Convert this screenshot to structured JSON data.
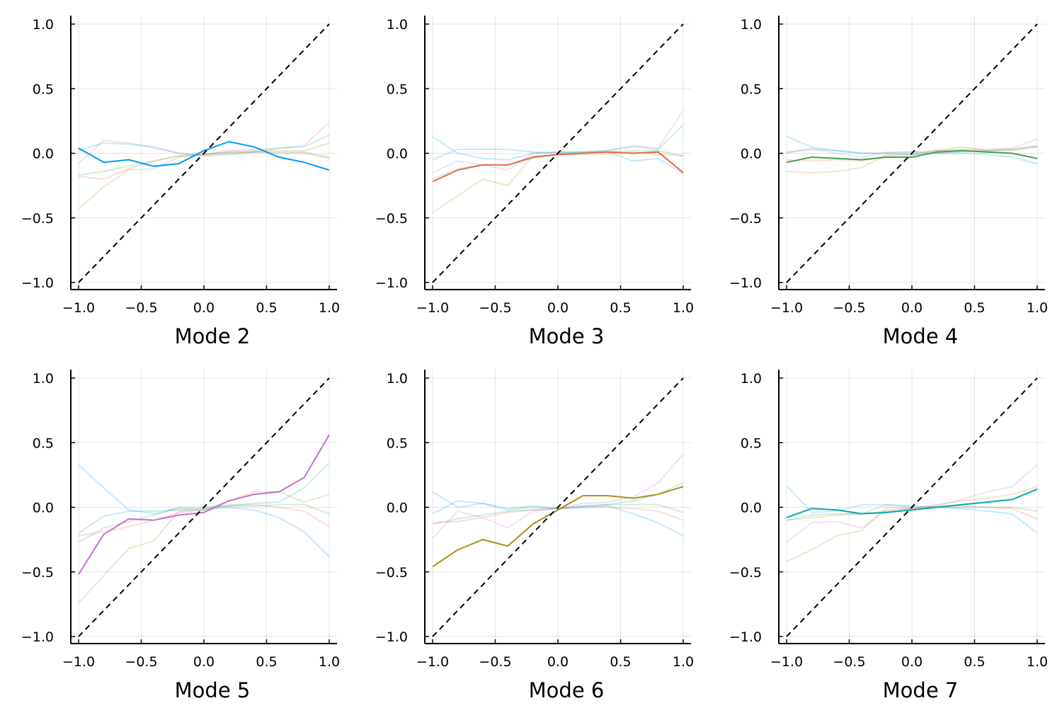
{
  "chart_data": [
    {
      "type": "line",
      "xlabel": "Mode 2",
      "xlim": [
        -1.05,
        1.05
      ],
      "ylim": [
        -1.05,
        1.05
      ],
      "xticks": [
        "−1.0",
        "−0.5",
        "0.0",
        "0.5",
        "1.0"
      ],
      "yticks": [
        "−1.0",
        "−0.5",
        "0.0",
        "0.5",
        "1.0"
      ],
      "tick_values": [
        -1.0,
        -0.5,
        0.0,
        0.5,
        1.0
      ],
      "grid": true,
      "legend": "none",
      "reference_line": {
        "style": "dashed",
        "color": "#000000",
        "x": [
          -1.0,
          1.0
        ],
        "y": [
          -1.0,
          1.0
        ]
      },
      "x": [
        -1.0,
        -0.8,
        -0.6,
        -0.4,
        -0.2,
        0.0,
        0.2,
        0.4,
        0.6,
        0.8,
        1.0
      ],
      "highlight": {
        "color": "#009AFA",
        "values": [
          0.04,
          -0.07,
          -0.05,
          -0.1,
          -0.08,
          0.02,
          0.09,
          0.05,
          -0.03,
          -0.07,
          -0.13
        ]
      },
      "background_series": [
        {
          "color": "#E26F46",
          "values": [
            -0.18,
            -0.2,
            -0.12,
            -0.06,
            -0.02,
            -0.01,
            0.01,
            0.01,
            0.0,
            0.0,
            -0.04
          ]
        },
        {
          "color": "#3EA44E",
          "values": [
            -0.17,
            -0.14,
            -0.1,
            -0.06,
            -0.02,
            -0.01,
            0.0,
            0.01,
            0.01,
            0.01,
            -0.03
          ]
        },
        {
          "color": "#C271D2",
          "values": [
            -0.08,
            0.1,
            0.08,
            0.04,
            0.0,
            -0.01,
            0.02,
            0.03,
            0.04,
            0.06,
            0.24
          ]
        },
        {
          "color": "#AC8D18",
          "values": [
            -0.43,
            -0.26,
            -0.13,
            -0.12,
            -0.03,
            -0.01,
            0.01,
            0.02,
            0.02,
            0.02,
            0.08
          ]
        },
        {
          "color": "#00A9AD",
          "values": [
            0.02,
            0.08,
            0.07,
            0.05,
            0.0,
            -0.02,
            -0.01,
            0.01,
            0.04,
            0.05,
            0.14
          ]
        }
      ]
    },
    {
      "type": "line",
      "xlabel": "Mode 3",
      "xlim": [
        -1.05,
        1.05
      ],
      "ylim": [
        -1.05,
        1.05
      ],
      "xticks": [
        "−1.0",
        "−0.5",
        "0.0",
        "0.5",
        "1.0"
      ],
      "yticks": [
        "−1.0",
        "−0.5",
        "0.0",
        "0.5",
        "1.0"
      ],
      "tick_values": [
        -1.0,
        -0.5,
        0.0,
        0.5,
        1.0
      ],
      "grid": true,
      "legend": "none",
      "reference_line": {
        "style": "dashed",
        "color": "#000000",
        "x": [
          -1.0,
          1.0
        ],
        "y": [
          -1.0,
          1.0
        ]
      },
      "x": [
        -1.0,
        -0.8,
        -0.6,
        -0.4,
        -0.2,
        0.0,
        0.2,
        0.4,
        0.6,
        0.8,
        1.0
      ],
      "highlight": {
        "color": "#E26F46",
        "values": [
          -0.22,
          -0.13,
          -0.09,
          -0.09,
          -0.03,
          -0.01,
          0.0,
          0.01,
          0.0,
          0.01,
          -0.15
        ]
      },
      "background_series": [
        {
          "color": "#009AFA",
          "values": [
            0.13,
            0.0,
            -0.04,
            -0.05,
            0.0,
            0.01,
            0.01,
            0.01,
            -0.06,
            -0.04,
            -0.16
          ]
        },
        {
          "color": "#3EA44E",
          "values": [
            -0.2,
            -0.12,
            -0.09,
            -0.09,
            -0.04,
            -0.01,
            0.0,
            0.01,
            0.02,
            0.02,
            -0.02
          ]
        },
        {
          "color": "#C271D2",
          "values": [
            -0.15,
            -0.06,
            -0.09,
            -0.13,
            0.0,
            0.01,
            0.01,
            0.02,
            0.06,
            0.04,
            0.33
          ]
        },
        {
          "color": "#AC8D18",
          "values": [
            -0.46,
            -0.33,
            -0.2,
            -0.25,
            -0.02,
            -0.01,
            -0.01,
            -0.01,
            0.01,
            -0.01,
            -0.02
          ]
        },
        {
          "color": "#00A9AD",
          "values": [
            -0.05,
            0.03,
            0.03,
            0.03,
            0.01,
            0.0,
            0.01,
            0.02,
            0.05,
            0.03,
            0.22
          ]
        }
      ]
    },
    {
      "type": "line",
      "xlabel": "Mode 4",
      "xlim": [
        -1.05,
        1.05
      ],
      "ylim": [
        -1.05,
        1.05
      ],
      "xticks": [
        "−1.0",
        "−0.5",
        "0.0",
        "0.5",
        "1.0"
      ],
      "yticks": [
        "−1.0",
        "−0.5",
        "0.0",
        "0.5",
        "1.0"
      ],
      "tick_values": [
        -1.0,
        -0.5,
        0.0,
        0.5,
        1.0
      ],
      "grid": true,
      "legend": "none",
      "reference_line": {
        "style": "dashed",
        "color": "#000000",
        "x": [
          -1.0,
          1.0
        ],
        "y": [
          -1.0,
          1.0
        ]
      },
      "x": [
        -1.0,
        -0.8,
        -0.6,
        -0.4,
        -0.2,
        0.0,
        0.2,
        0.4,
        0.6,
        0.8,
        1.0
      ],
      "highlight": {
        "color": "#3EA44E",
        "values": [
          -0.07,
          -0.03,
          -0.04,
          -0.05,
          -0.03,
          -0.03,
          0.01,
          0.02,
          0.01,
          0.0,
          -0.04
        ]
      },
      "background_series": [
        {
          "color": "#009AFA",
          "values": [
            0.13,
            0.05,
            0.02,
            0.0,
            0.0,
            0.01,
            0.0,
            0.0,
            -0.01,
            -0.03,
            -0.08
          ]
        },
        {
          "color": "#E26F46",
          "values": [
            -0.05,
            -0.06,
            -0.05,
            -0.06,
            -0.02,
            -0.01,
            0.02,
            0.02,
            0.02,
            0.02,
            0.05
          ]
        },
        {
          "color": "#C271D2",
          "values": [
            0.0,
            0.04,
            0.0,
            -0.03,
            0.01,
            0.01,
            0.02,
            0.03,
            0.03,
            0.04,
            0.11
          ]
        },
        {
          "color": "#AC8D18",
          "values": [
            -0.14,
            -0.15,
            -0.14,
            -0.11,
            -0.01,
            -0.01,
            0.02,
            0.05,
            0.02,
            0.03,
            0.05
          ]
        },
        {
          "color": "#00A9AD",
          "values": [
            0.01,
            0.03,
            0.02,
            0.0,
            0.0,
            -0.01,
            0.0,
            0.01,
            0.02,
            0.03,
            0.06
          ]
        }
      ]
    },
    {
      "type": "line",
      "xlabel": "Mode 5",
      "xlim": [
        -1.05,
        1.05
      ],
      "ylim": [
        -1.05,
        1.05
      ],
      "xticks": [
        "−1.0",
        "−0.5",
        "0.0",
        "0.5",
        "1.0"
      ],
      "yticks": [
        "−1.0",
        "−0.5",
        "0.0",
        "0.5",
        "1.0"
      ],
      "tick_values": [
        -1.0,
        -0.5,
        0.0,
        0.5,
        1.0
      ],
      "grid": true,
      "legend": "none",
      "reference_line": {
        "style": "dashed",
        "color": "#000000",
        "x": [
          -1.0,
          1.0
        ],
        "y": [
          -1.0,
          1.0
        ]
      },
      "x": [
        -1.0,
        -0.8,
        -0.6,
        -0.4,
        -0.2,
        0.0,
        0.2,
        0.4,
        0.6,
        0.8,
        1.0
      ],
      "highlight": {
        "color": "#C271D2",
        "values": [
          -0.52,
          -0.21,
          -0.09,
          -0.1,
          -0.06,
          -0.04,
          0.05,
          0.1,
          0.12,
          0.23,
          0.56
        ]
      },
      "background_series": [
        {
          "color": "#009AFA",
          "values": [
            0.33,
            0.15,
            -0.02,
            -0.05,
            -0.01,
            -0.02,
            0.0,
            -0.02,
            -0.08,
            -0.19,
            -0.38
          ]
        },
        {
          "color": "#E26F46",
          "values": [
            -0.22,
            -0.19,
            -0.15,
            -0.1,
            -0.04,
            -0.02,
            0.02,
            0.02,
            0.0,
            -0.03,
            -0.15
          ]
        },
        {
          "color": "#3EA44E",
          "values": [
            -0.27,
            -0.16,
            -0.11,
            -0.06,
            0.0,
            0.0,
            0.01,
            0.01,
            0.02,
            0.02,
            -0.05
          ]
        },
        {
          "color": "#AC8D18",
          "values": [
            -0.74,
            -0.53,
            -0.32,
            -0.26,
            -0.03,
            -0.02,
            0.05,
            0.12,
            0.12,
            0.04,
            0.1
          ]
        },
        {
          "color": "#00A9AD",
          "values": [
            -0.2,
            -0.07,
            -0.03,
            -0.03,
            -0.02,
            -0.01,
            0.01,
            0.03,
            0.04,
            0.15,
            0.34
          ]
        }
      ]
    },
    {
      "type": "line",
      "xlabel": "Mode 6",
      "xlim": [
        -1.05,
        1.05
      ],
      "ylim": [
        -1.05,
        1.05
      ],
      "xticks": [
        "−1.0",
        "−0.5",
        "0.0",
        "0.5",
        "1.0"
      ],
      "yticks": [
        "−1.0",
        "−0.5",
        "0.0",
        "0.5",
        "1.0"
      ],
      "tick_values": [
        -1.0,
        -0.5,
        0.0,
        0.5,
        1.0
      ],
      "grid": true,
      "legend": "none",
      "reference_line": {
        "style": "dashed",
        "color": "#000000",
        "x": [
          -1.0,
          1.0
        ],
        "y": [
          -1.0,
          1.0
        ]
      },
      "x": [
        -1.0,
        -0.8,
        -0.6,
        -0.4,
        -0.2,
        0.0,
        0.2,
        0.4,
        0.6,
        0.8,
        1.0
      ],
      "highlight": {
        "color": "#AC8D18",
        "values": [
          -0.46,
          -0.33,
          -0.25,
          -0.3,
          -0.13,
          -0.02,
          0.09,
          0.09,
          0.07,
          0.1,
          0.16
        ]
      },
      "background_series": [
        {
          "color": "#009AFA",
          "values": [
            0.12,
            0.0,
            0.03,
            -0.02,
            0.0,
            -0.01,
            0.0,
            0.01,
            -0.05,
            -0.12,
            -0.22
          ]
        },
        {
          "color": "#E26F46",
          "values": [
            -0.12,
            -0.11,
            -0.08,
            -0.04,
            -0.02,
            -0.01,
            0.0,
            0.0,
            -0.01,
            -0.03,
            -0.1
          ]
        },
        {
          "color": "#3EA44E",
          "values": [
            -0.13,
            -0.09,
            -0.06,
            -0.03,
            -0.02,
            -0.01,
            0.01,
            0.02,
            0.02,
            0.02,
            -0.04
          ]
        },
        {
          "color": "#C271D2",
          "values": [
            -0.24,
            -0.03,
            -0.08,
            -0.16,
            -0.03,
            -0.01,
            0.03,
            0.04,
            0.08,
            0.19,
            0.41
          ]
        },
        {
          "color": "#00A9AD",
          "values": [
            -0.05,
            0.05,
            0.03,
            -0.01,
            0.01,
            -0.01,
            0.01,
            0.02,
            0.05,
            0.1,
            0.19
          ]
        }
      ]
    },
    {
      "type": "line",
      "xlabel": "Mode 7",
      "xlim": [
        -1.05,
        1.05
      ],
      "ylim": [
        -1.05,
        1.05
      ],
      "xticks": [
        "−1.0",
        "−0.5",
        "0.0",
        "0.5",
        "1.0"
      ],
      "yticks": [
        "−1.0",
        "−0.5",
        "0.0",
        "0.5",
        "1.0"
      ],
      "tick_values": [
        -1.0,
        -0.5,
        0.0,
        0.5,
        1.0
      ],
      "grid": true,
      "legend": "none",
      "reference_line": {
        "style": "dashed",
        "color": "#000000",
        "x": [
          -1.0,
          1.0
        ],
        "y": [
          -1.0,
          1.0
        ]
      },
      "x": [
        -1.0,
        -0.8,
        -0.6,
        -0.4,
        -0.2,
        0.0,
        0.2,
        0.4,
        0.6,
        0.8,
        1.0
      ],
      "highlight": {
        "color": "#00A9AD",
        "values": [
          -0.08,
          -0.01,
          -0.02,
          -0.05,
          -0.04,
          -0.02,
          0.0,
          0.02,
          0.04,
          0.06,
          0.14
        ]
      },
      "background_series": [
        {
          "color": "#009AFA",
          "values": [
            0.17,
            -0.04,
            -0.03,
            0.02,
            0.02,
            0.01,
            0.0,
            -0.01,
            -0.03,
            -0.05,
            -0.2
          ]
        },
        {
          "color": "#E26F46",
          "values": [
            -0.1,
            -0.08,
            -0.06,
            -0.05,
            -0.03,
            -0.01,
            0.01,
            0.01,
            0.0,
            -0.01,
            -0.09
          ]
        },
        {
          "color": "#3EA44E",
          "values": [
            -0.1,
            -0.06,
            -0.05,
            -0.05,
            0.02,
            0.0,
            0.0,
            0.0,
            0.0,
            0.0,
            -0.03
          ]
        },
        {
          "color": "#C271D2",
          "values": [
            -0.27,
            -0.12,
            -0.11,
            -0.16,
            -0.02,
            -0.01,
            0.01,
            0.06,
            0.12,
            0.16,
            0.33
          ]
        },
        {
          "color": "#AC8D18",
          "values": [
            -0.42,
            -0.33,
            -0.22,
            -0.18,
            0.0,
            -0.01,
            0.02,
            0.05,
            0.07,
            0.1,
            0.16
          ]
        }
      ]
    }
  ]
}
